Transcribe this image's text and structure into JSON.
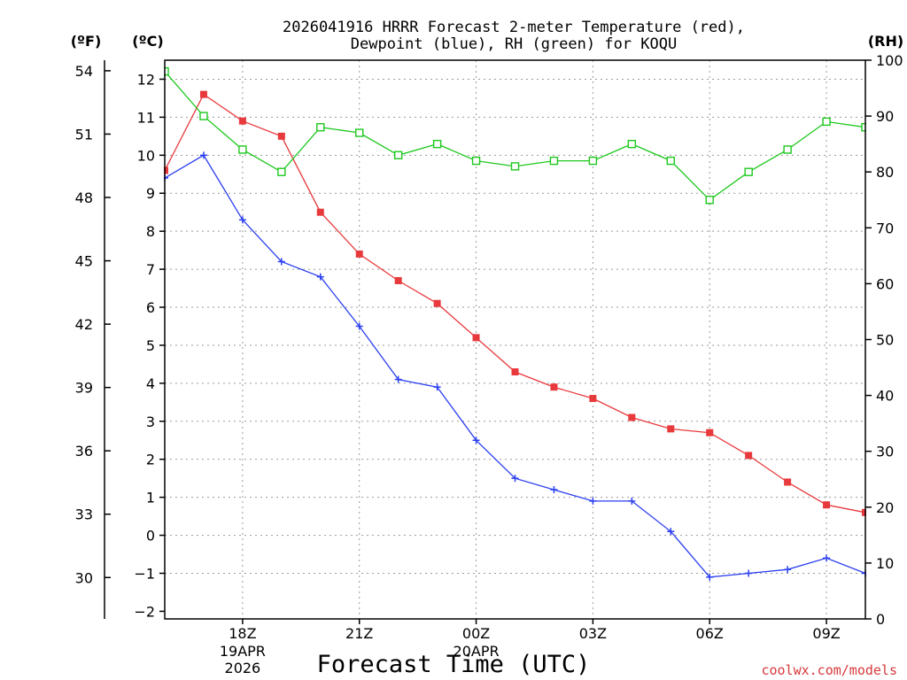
{
  "chart_data": {
    "type": "line",
    "title": "2026041916 HRRR Forecast 2-meter Temperature (red),",
    "subtitle": "Dewpoint (blue), RH (green) for KOQU",
    "xlabel": "Forecast Time (UTC)",
    "credit": "coolwx.com/models",
    "unit_labels": {
      "fahrenheit": "(ºF)",
      "celsius": "(ºC)",
      "rh": "(RH)"
    },
    "x": [
      16,
      17,
      18,
      19,
      20,
      21,
      22,
      23,
      24,
      25,
      26,
      27,
      28,
      29,
      30,
      31,
      32,
      33,
      34
    ],
    "xlim": [
      16,
      34
    ],
    "x_ticks": [
      {
        "x": 18,
        "label": "18Z",
        "sub1": "19APR",
        "sub2": "2026"
      },
      {
        "x": 21,
        "label": "21Z",
        "sub1": "",
        "sub2": ""
      },
      {
        "x": 24,
        "label": "00Z",
        "sub1": "20APR",
        "sub2": ""
      },
      {
        "x": 27,
        "label": "03Z",
        "sub1": "",
        "sub2": ""
      },
      {
        "x": 30,
        "label": "06Z",
        "sub1": "",
        "sub2": ""
      },
      {
        "x": 33,
        "label": "09Z",
        "sub1": "",
        "sub2": ""
      }
    ],
    "ylim_c": [
      -2.2,
      12.5
    ],
    "y_ticks_c": [
      -2,
      -1,
      0,
      1,
      2,
      3,
      4,
      5,
      6,
      7,
      8,
      9,
      10,
      11,
      12
    ],
    "y_ticks_f": [
      {
        "value": 30,
        "label": "30"
      },
      {
        "value": 33,
        "label": "33"
      },
      {
        "value": 36,
        "label": "36"
      },
      {
        "value": 39,
        "label": "39"
      },
      {
        "value": 42,
        "label": "42"
      },
      {
        "value": 45,
        "label": "45"
      },
      {
        "value": 48,
        "label": "48"
      },
      {
        "value": 51,
        "label": "51"
      },
      {
        "value": 54,
        "label": "54"
      }
    ],
    "ylim_rh": [
      0,
      100
    ],
    "y_ticks_rh": [
      0,
      10,
      20,
      30,
      40,
      50,
      60,
      70,
      80,
      90,
      100
    ],
    "series": [
      {
        "name": "Temperature",
        "axis": "C",
        "color": "#e8393c",
        "marker": "filled-square",
        "values": [
          9.6,
          11.6,
          10.9,
          10.5,
          8.5,
          7.4,
          6.7,
          6.1,
          5.2,
          4.3,
          3.9,
          3.6,
          3.1,
          2.8,
          2.7,
          2.1,
          1.4,
          0.8,
          0.6
        ]
      },
      {
        "name": "Dewpoint",
        "axis": "C",
        "color": "#2b3ff0",
        "marker": "plus",
        "values": [
          9.4,
          10.0,
          8.3,
          7.2,
          6.8,
          5.5,
          4.1,
          3.9,
          2.5,
          1.5,
          1.2,
          0.9,
          0.9,
          0.1,
          -1.1,
          -1.0,
          -0.9,
          -0.6,
          -1.0
        ]
      },
      {
        "name": "RH",
        "axis": "RH",
        "color": "#1ec81e",
        "marker": "open-square",
        "values": [
          98,
          90,
          84,
          80,
          88,
          87,
          83,
          85,
          82,
          81,
          82,
          82,
          85,
          82,
          75,
          80,
          84,
          89,
          88
        ]
      }
    ]
  }
}
